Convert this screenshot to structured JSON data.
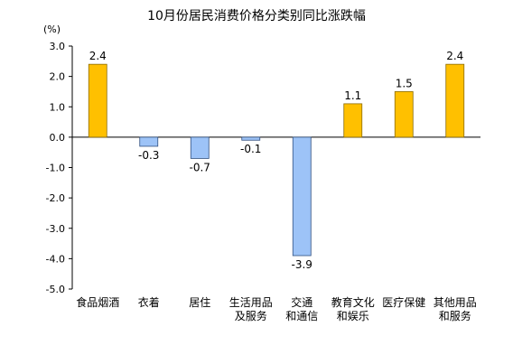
{
  "chart_data": {
    "type": "bar",
    "title": "10月份居民消费价格分类别同比涨跌幅",
    "unit": "(%)",
    "ylim": [
      -5.0,
      3.0
    ],
    "yticks": [
      "3.0",
      "2.0",
      "1.0",
      "0.0",
      "-1.0",
      "-2.0",
      "-3.0",
      "-4.0",
      "-5.0"
    ],
    "grid": false,
    "categories": [
      [
        "食品烟酒"
      ],
      [
        "衣着"
      ],
      [
        "居住"
      ],
      [
        "生活用品",
        "及服务"
      ],
      [
        "交通",
        "和通信"
      ],
      [
        "教育文化",
        "和娱乐"
      ],
      [
        "医疗保健"
      ],
      [
        "其他用品",
        "和服务"
      ]
    ],
    "values": [
      2.4,
      -0.3,
      -0.7,
      -0.1,
      -3.9,
      1.1,
      1.5,
      2.4
    ],
    "value_labels": [
      "2.4",
      "-0.3",
      "-0.7",
      "-0.1",
      "-3.9",
      "1.1",
      "1.5",
      "2.4"
    ],
    "colors": {
      "positive_fill": "#FFC000",
      "positive_stroke": "#8B6B00",
      "negative_fill": "#9DC3F7",
      "negative_stroke": "#2F4F7F",
      "axis": "#000000"
    }
  }
}
